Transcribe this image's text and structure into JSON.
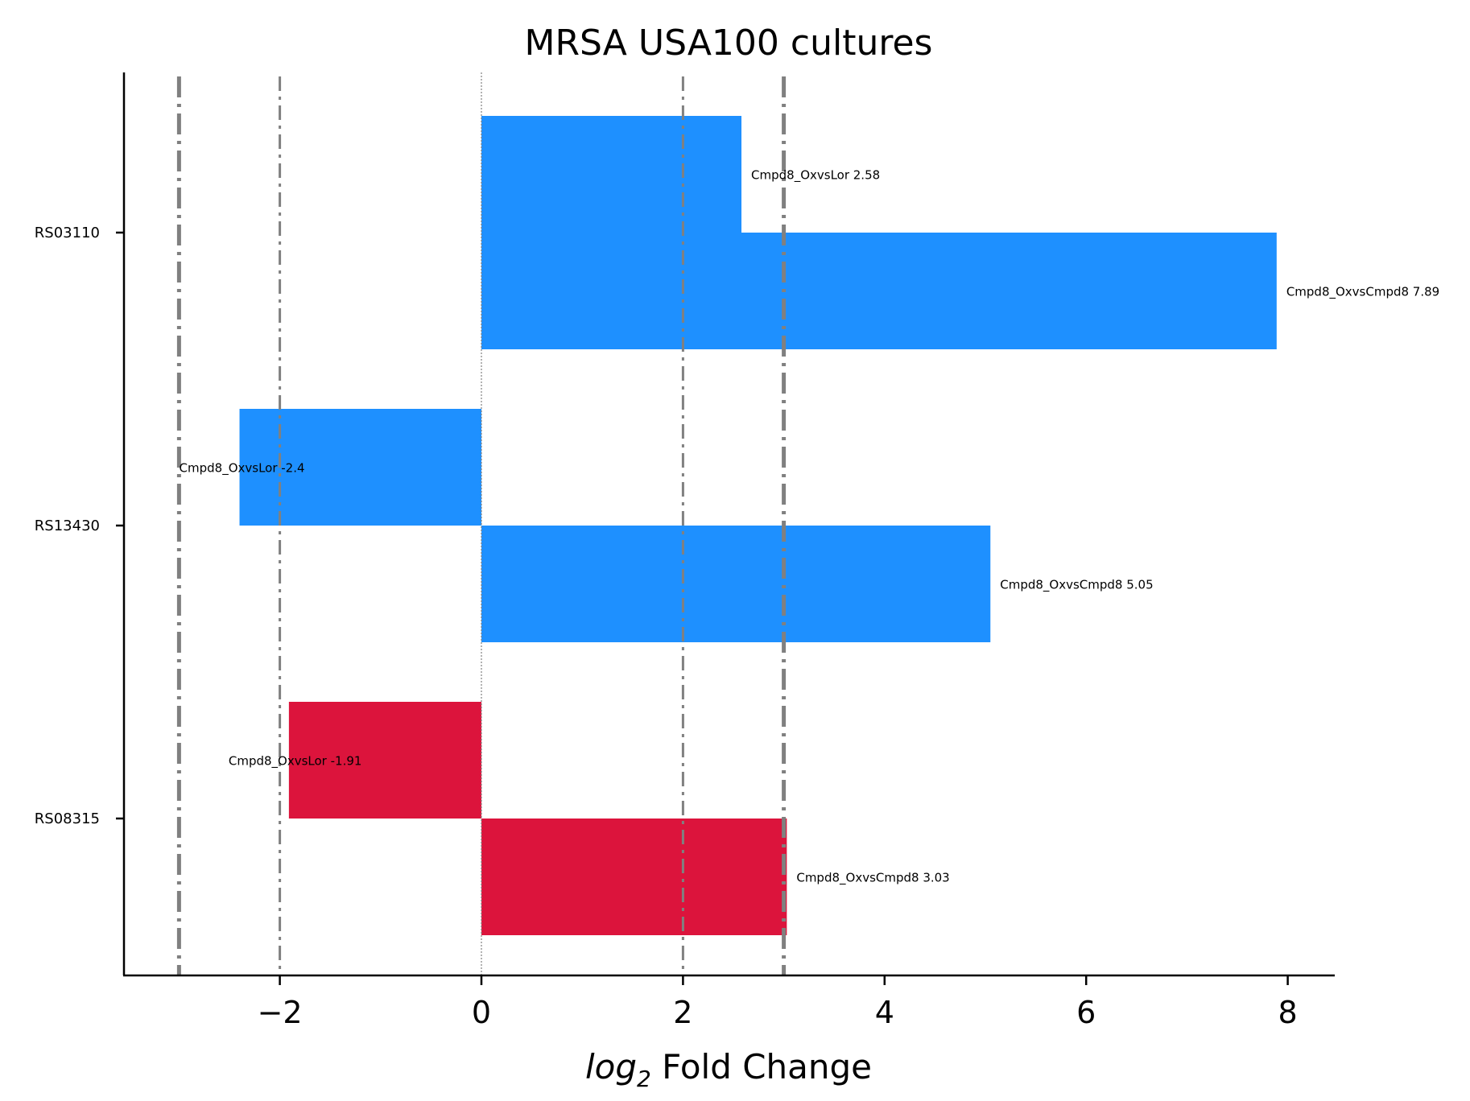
{
  "chart_data": {
    "type": "bar",
    "orientation": "horizontal",
    "title": "MRSA USA100 cultures",
    "xlabel_italic": "log",
    "xlabel_sub": "2",
    "xlabel_rest": " Fold Change",
    "xlim": [
      -3.5,
      8.45
    ],
    "xticks": [
      -2,
      0,
      2,
      4,
      6,
      8
    ],
    "xtick_labels": [
      "−2",
      "0",
      "2",
      "4",
      "6",
      "8"
    ],
    "grid": false,
    "genes": [
      {
        "name": "RS03110",
        "color": "#1e90ff",
        "bars": [
          {
            "comparison": "Cmpd8_OxvsLor",
            "value": 2.58,
            "label": "Cmpd8_OxvsLor 2.58"
          },
          {
            "comparison": "Cmpd8_OxvsCmpd8",
            "value": 7.89,
            "label": "Cmpd8_OxvsCmpd8 7.89"
          }
        ]
      },
      {
        "name": "RS13430",
        "color": "#1e90ff",
        "bars": [
          {
            "comparison": "Cmpd8_OxvsLor",
            "value": -2.4,
            "label": "Cmpd8_OxvsLor -2.4"
          },
          {
            "comparison": "Cmpd8_OxvsCmpd8",
            "value": 5.05,
            "label": "Cmpd8_OxvsCmpd8 5.05"
          }
        ]
      },
      {
        "name": "RS08315",
        "color": "#dc143c",
        "bars": [
          {
            "comparison": "Cmpd8_OxvsLor",
            "value": -1.91,
            "label": "Cmpd8_OxvsLor -1.91"
          },
          {
            "comparison": "Cmpd8_OxvsCmpd8",
            "value": 3.03,
            "label": "Cmpd8_OxvsCmpd8 3.03"
          }
        ]
      }
    ],
    "reference_lines": [
      {
        "x": -3,
        "style": "dashdot",
        "weight": "thick"
      },
      {
        "x": -2,
        "style": "dashdot",
        "weight": "thin"
      },
      {
        "x": 0,
        "style": "dotted",
        "weight": "hair"
      },
      {
        "x": 2,
        "style": "dashdot",
        "weight": "thin"
      },
      {
        "x": 3,
        "style": "dashdot",
        "weight": "thick"
      }
    ],
    "line_color": "#808080"
  }
}
